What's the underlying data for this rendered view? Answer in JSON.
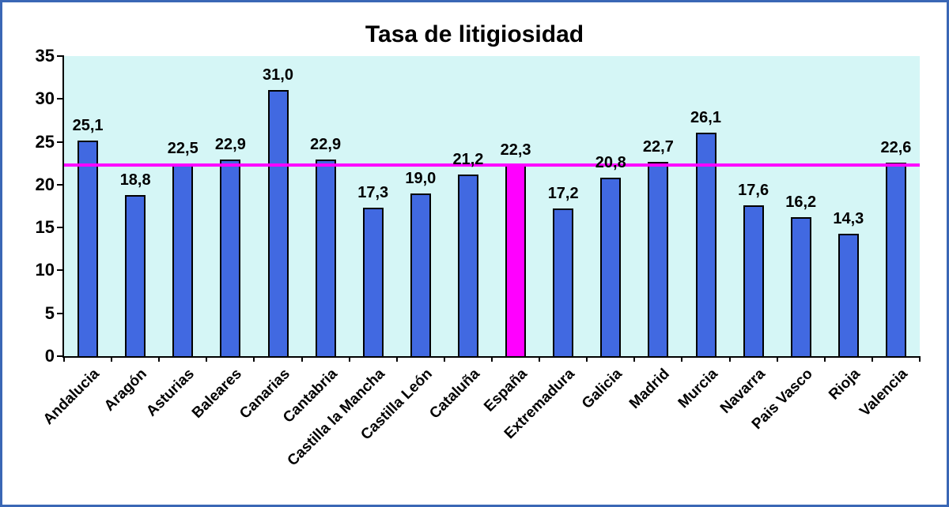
{
  "chart_data": {
    "type": "bar",
    "title": "Tasa de litigiosidad",
    "categories": [
      "Andalucia",
      "Aragón",
      "Asturias",
      "Baleares",
      "Canarias",
      "Cantabria",
      "Castilla la Mancha",
      "Castilla León",
      "Cataluña",
      "España",
      "Extremadura",
      "Galicia",
      "Madrid",
      "Murcia",
      "Navarra",
      "Pais Vasco",
      "Rioja",
      "Valencia"
    ],
    "values": [
      25.1,
      18.8,
      22.5,
      22.9,
      31.0,
      22.9,
      17.3,
      19.0,
      21.2,
      22.3,
      17.2,
      20.8,
      22.7,
      26.1,
      17.6,
      16.2,
      14.3,
      22.6
    ],
    "value_labels": [
      "25,1",
      "18,8",
      "22,5",
      "22,9",
      "31,0",
      "22,9",
      "17,3",
      "19,0",
      "21,2",
      "22,3",
      "17,2",
      "20,8",
      "22,7",
      "26,1",
      "17,6",
      "16,2",
      "14,3",
      "22,6"
    ],
    "xlabel": "",
    "ylabel": "",
    "ylim": [
      0,
      35
    ],
    "yticks": [
      0,
      5,
      10,
      15,
      20,
      25,
      30,
      35
    ],
    "grid": false,
    "legend": null,
    "highlight_category": "España",
    "highlight_index": 9,
    "reference_line": {
      "value": 22.3,
      "color": "#FF00FF"
    },
    "colors": {
      "bar": "#4169E1",
      "highlight_bar": "#FF00FF",
      "bar_border": "#000000",
      "plot_bg": "#D5F6F6",
      "axis": "#000000",
      "frame_border": "#3A67B5",
      "text": "#000000"
    }
  }
}
